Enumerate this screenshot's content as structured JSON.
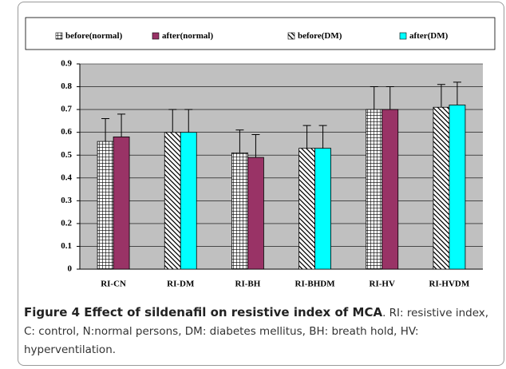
{
  "chart_data": {
    "type": "bar",
    "categories": [
      "RI-CN",
      "RI-DM",
      "RI-BH",
      "RI-BHDM",
      "RI-HV",
      "RI-HVDM"
    ],
    "series": [
      {
        "name": "before(normal)",
        "color": "#000000",
        "pattern": "grid",
        "values": [
          0.56,
          null,
          0.51,
          null,
          0.7,
          null
        ],
        "errors": [
          0.1,
          null,
          0.1,
          null,
          0.1,
          null
        ]
      },
      {
        "name": "after(normal)",
        "color": "#993366",
        "pattern": "solid",
        "values": [
          0.58,
          null,
          0.49,
          null,
          0.7,
          null
        ],
        "errors": [
          0.1,
          null,
          0.1,
          null,
          0.1,
          null
        ]
      },
      {
        "name": "before(DM)",
        "color": "#000000",
        "pattern": "diagonal",
        "values": [
          null,
          0.6,
          null,
          0.53,
          null,
          0.71
        ],
        "errors": [
          null,
          0.1,
          null,
          0.1,
          null,
          0.1
        ]
      },
      {
        "name": "after(DM)",
        "color": "#00ffff",
        "pattern": "solid",
        "values": [
          null,
          0.6,
          null,
          0.53,
          null,
          0.72
        ],
        "errors": [
          null,
          0.1,
          null,
          0.1,
          null,
          0.1
        ]
      }
    ],
    "ylim": [
      0,
      0.9
    ],
    "yticks": [
      0,
      0.1,
      0.2,
      0.3,
      0.4,
      0.5,
      0.6,
      0.7,
      0.8,
      0.9
    ],
    "grid": true,
    "legend": "top",
    "plot_background": "#c0c0c0"
  },
  "caption": {
    "title": "Figure 4 Effect of sildenafil on resistive index of MCA",
    "text": ". RI: resistive index, C: control, N:normal persons, DM: diabetes mellitus, BH: breath hold, HV: hyperventilation."
  }
}
